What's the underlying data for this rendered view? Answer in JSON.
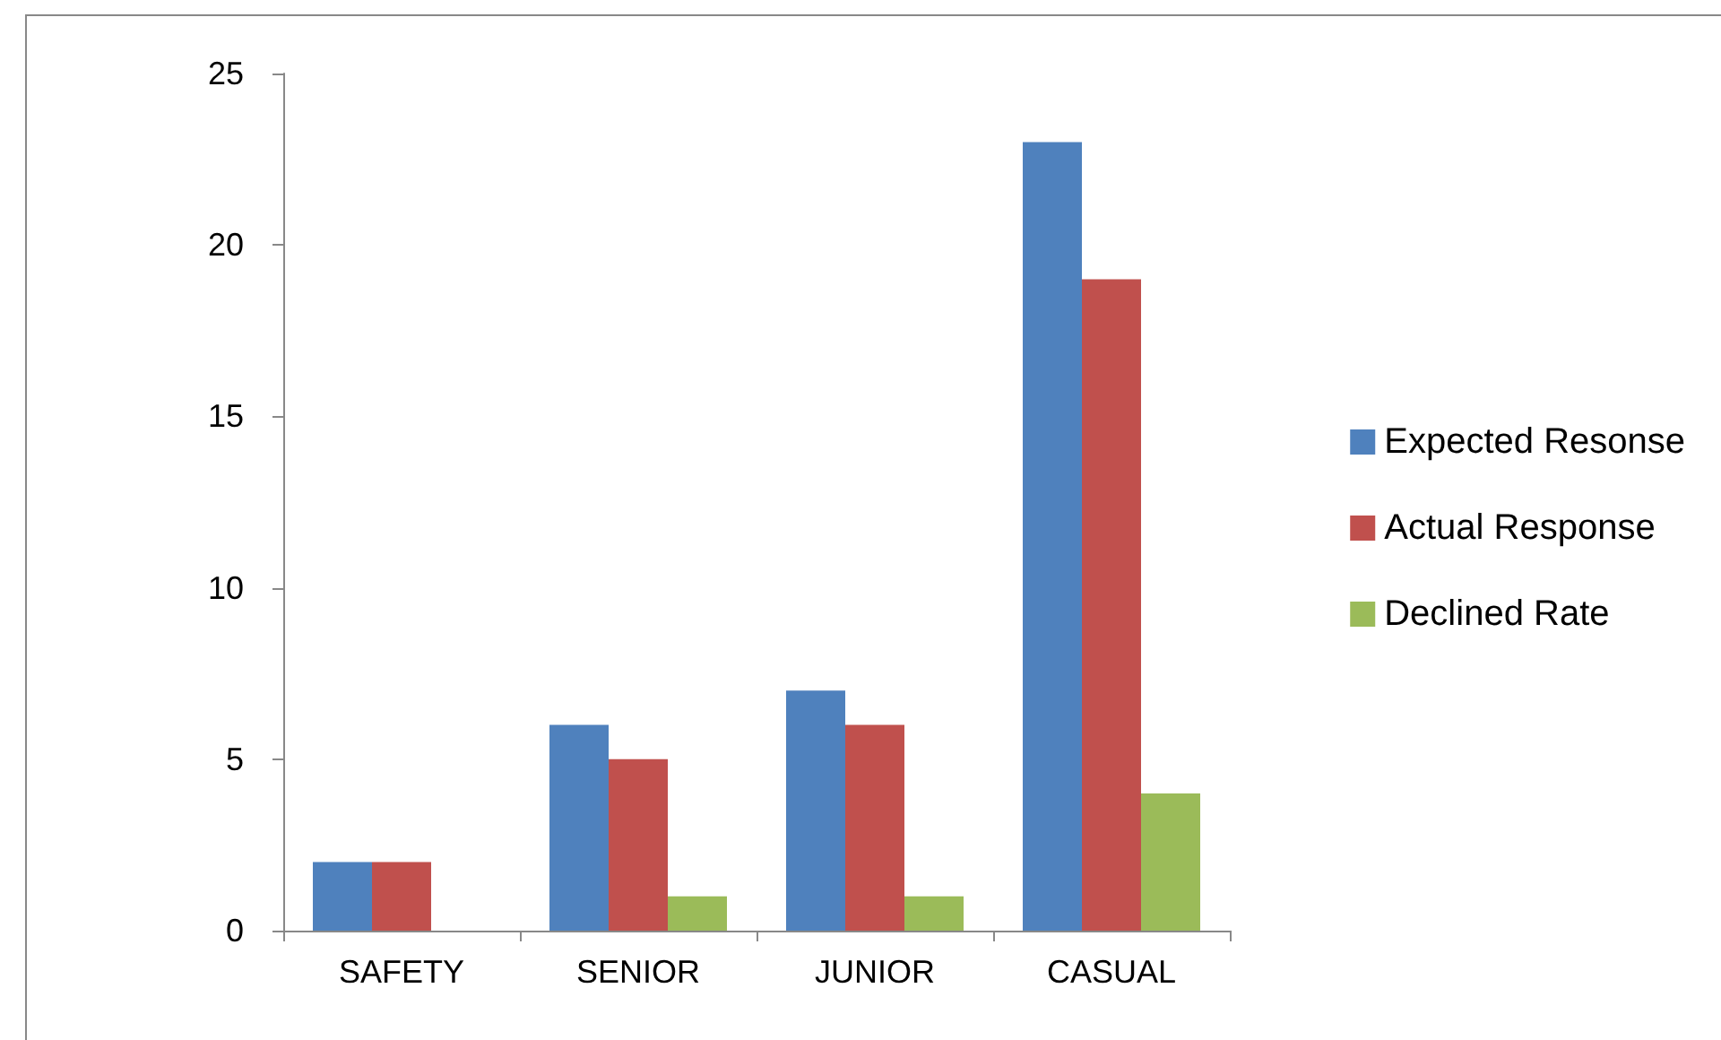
{
  "chart_data": {
    "type": "bar",
    "categories": [
      "SAFETY",
      "SENIOR",
      "JUNIOR",
      "CASUAL"
    ],
    "series": [
      {
        "name": "Expected Resonse",
        "color": "#4f81bd",
        "values": [
          2,
          6,
          7,
          23
        ]
      },
      {
        "name": "Actual Response",
        "color": "#c0504d",
        "values": [
          2,
          5,
          6,
          19
        ]
      },
      {
        "name": "Declined Rate",
        "color": "#9bbb59",
        "values": [
          0,
          1,
          1,
          4
        ]
      }
    ],
    "ylim": [
      0,
      25
    ],
    "yticks": [
      0,
      5,
      10,
      15,
      20,
      25
    ],
    "grid": false,
    "legend": "right"
  }
}
